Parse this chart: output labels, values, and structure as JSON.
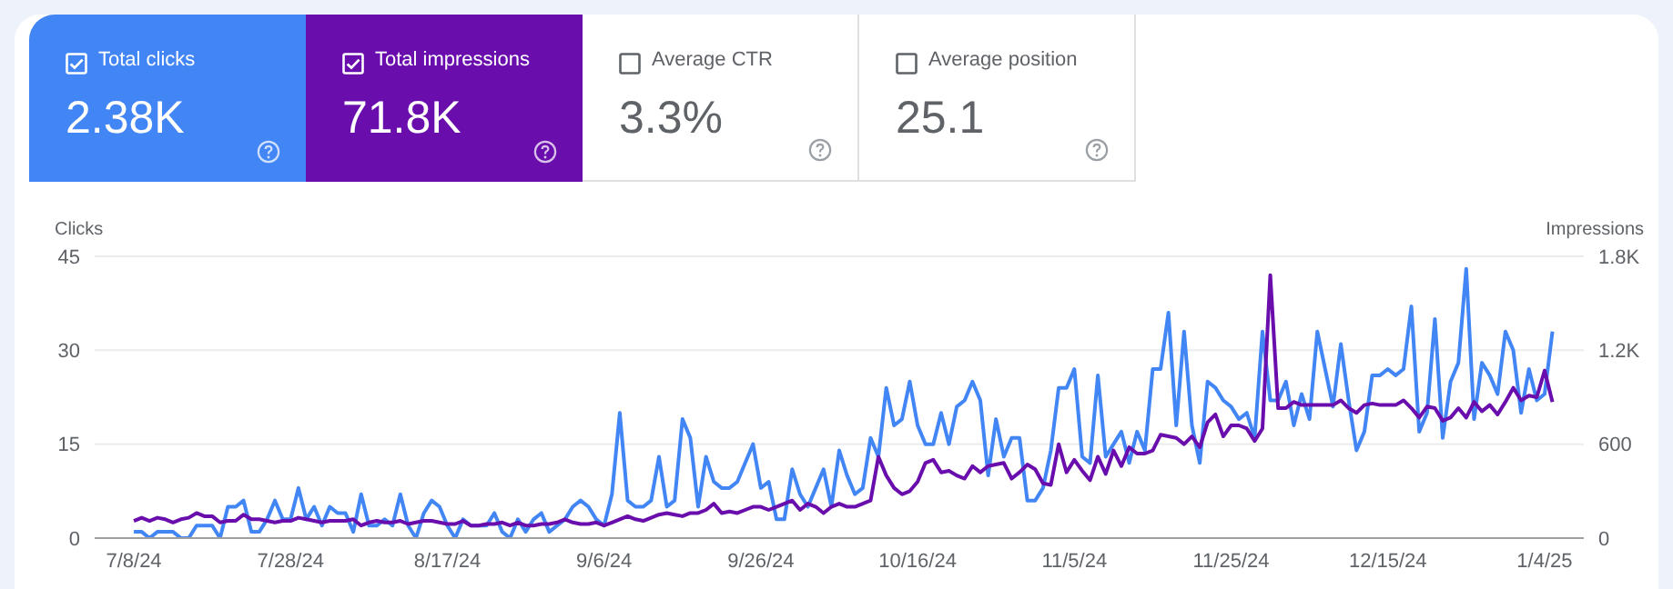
{
  "chart_data": {
    "type": "line",
    "annotations": [
      "Total clicks",
      "2.38K",
      "Total impressions",
      "71.8K",
      "Average CTR",
      "3.3%",
      "Average position",
      "25.1"
    ],
    "ylabel": "Clicks",
    "y2label": "Impressions",
    "x": [
      "2024-07-08",
      "2024-07-09",
      "2024-07-10",
      "2024-07-11",
      "2024-07-12",
      "2024-07-13",
      "2024-07-14",
      "2024-07-15",
      "2024-07-16",
      "2024-07-17",
      "2024-07-18",
      "2024-07-19",
      "2024-07-20",
      "2024-07-21",
      "2024-07-22",
      "2024-07-23",
      "2024-07-24",
      "2024-07-25",
      "2024-07-26",
      "2024-07-27",
      "2024-07-28",
      "2024-07-29",
      "2024-07-30",
      "2024-07-31",
      "2024-08-01",
      "2024-08-02",
      "2024-08-03",
      "2024-08-04",
      "2024-08-05",
      "2024-08-06",
      "2024-08-07",
      "2024-08-08",
      "2024-08-09",
      "2024-08-10",
      "2024-08-11",
      "2024-08-12",
      "2024-08-13",
      "2024-08-14",
      "2024-08-15",
      "2024-08-16",
      "2024-08-17",
      "2024-08-18",
      "2024-08-19",
      "2024-08-20",
      "2024-08-21",
      "2024-08-22",
      "2024-08-23",
      "2024-08-24",
      "2024-08-25",
      "2024-08-26",
      "2024-08-27",
      "2024-08-28",
      "2024-08-29",
      "2024-08-30",
      "2024-08-31",
      "2024-09-01",
      "2024-09-02",
      "2024-09-03",
      "2024-09-04",
      "2024-09-05",
      "2024-09-06",
      "2024-09-07",
      "2024-09-08",
      "2024-09-09",
      "2024-09-10",
      "2024-09-11",
      "2024-09-12",
      "2024-09-13",
      "2024-09-14",
      "2024-09-15",
      "2024-09-16",
      "2024-09-17",
      "2024-09-18",
      "2024-09-19",
      "2024-09-20",
      "2024-09-21",
      "2024-09-22",
      "2024-09-23",
      "2024-09-24",
      "2024-09-25",
      "2024-09-26",
      "2024-09-27",
      "2024-09-28",
      "2024-09-29",
      "2024-09-30",
      "2024-10-01",
      "2024-10-02",
      "2024-10-03",
      "2024-10-04",
      "2024-10-05",
      "2024-10-06",
      "2024-10-07",
      "2024-10-08",
      "2024-10-09",
      "2024-10-10",
      "2024-10-11",
      "2024-10-12",
      "2024-10-13",
      "2024-10-14",
      "2024-10-15",
      "2024-10-16",
      "2024-10-17",
      "2024-10-18",
      "2024-10-19",
      "2024-10-20",
      "2024-10-21",
      "2024-10-22",
      "2024-10-23",
      "2024-10-24",
      "2024-10-25",
      "2024-10-26",
      "2024-10-27",
      "2024-10-28",
      "2024-10-29",
      "2024-10-30",
      "2024-10-31",
      "2024-11-01",
      "2024-11-02",
      "2024-11-03",
      "2024-11-04",
      "2024-11-05",
      "2024-11-06",
      "2024-11-07",
      "2024-11-08",
      "2024-11-09",
      "2024-11-10",
      "2024-11-11",
      "2024-11-12",
      "2024-11-13",
      "2024-11-14",
      "2024-11-15",
      "2024-11-16",
      "2024-11-17",
      "2024-11-18",
      "2024-11-19",
      "2024-11-20",
      "2024-11-21",
      "2024-11-22",
      "2024-11-23",
      "2024-11-24",
      "2024-11-25",
      "2024-11-26",
      "2024-11-27",
      "2024-11-28",
      "2024-11-29",
      "2024-11-30",
      "2024-12-01",
      "2024-12-02",
      "2024-12-03",
      "2024-12-04",
      "2024-12-05",
      "2024-12-06",
      "2024-12-07",
      "2024-12-08",
      "2024-12-09",
      "2024-12-10",
      "2024-12-11",
      "2024-12-12",
      "2024-12-13",
      "2024-12-14",
      "2024-12-15",
      "2024-12-16",
      "2024-12-17",
      "2024-12-18",
      "2024-12-19",
      "2024-12-20",
      "2024-12-21",
      "2024-12-22",
      "2024-12-23",
      "2024-12-24",
      "2024-12-25",
      "2024-12-26",
      "2024-12-27",
      "2024-12-28",
      "2024-12-29",
      "2024-12-30",
      "2024-12-31",
      "2025-01-01",
      "2025-01-02",
      "2025-01-03",
      "2025-01-04",
      "2025-01-05"
    ],
    "series": [
      {
        "color": "#4285f4",
        "values": [
          1,
          1,
          0,
          1,
          1,
          1,
          0,
          0,
          2,
          2,
          2,
          0,
          5,
          5,
          6,
          1,
          1,
          3,
          6,
          3,
          3,
          8,
          3,
          5,
          2,
          5,
          4,
          4,
          1,
          7,
          2,
          2,
          3,
          2,
          7,
          2,
          0,
          4,
          6,
          5,
          2,
          0,
          3,
          2,
          2,
          2,
          4,
          1,
          0,
          3,
          1,
          3,
          4,
          1,
          2,
          3,
          5,
          6,
          5,
          3,
          2,
          7,
          20,
          6,
          5,
          5,
          6,
          13,
          5,
          6,
          19,
          16,
          5,
          13,
          9,
          8,
          8,
          9,
          12,
          15,
          8,
          9,
          3,
          3,
          11,
          7,
          5,
          8,
          11,
          5,
          14,
          10,
          7,
          8,
          16,
          13,
          24,
          18,
          19,
          25,
          18,
          15,
          15,
          20,
          15,
          21,
          22,
          25,
          22,
          10,
          19,
          13,
          16,
          16,
          6,
          6,
          8,
          14,
          24,
          24,
          27,
          13,
          12,
          26,
          13,
          15,
          17,
          12,
          17,
          14,
          27,
          27,
          36,
          18,
          33,
          18,
          12,
          25,
          24,
          22,
          21,
          19,
          20,
          16,
          33,
          22,
          22,
          25,
          18,
          23,
          19,
          33,
          27,
          21,
          31,
          22,
          14,
          17,
          26,
          26,
          27,
          26,
          27,
          37,
          17,
          20,
          35,
          16,
          25,
          28,
          43,
          19,
          28,
          26,
          23,
          33,
          30,
          20,
          27,
          22,
          23,
          33
        ]
      },
      {
        "color": "#6a0dad",
        "axis": "y2",
        "values": [
          110,
          130,
          110,
          130,
          120,
          100,
          120,
          130,
          160,
          140,
          140,
          100,
          110,
          110,
          150,
          120,
          120,
          110,
          100,
          110,
          110,
          130,
          120,
          110,
          100,
          110,
          110,
          110,
          120,
          80,
          100,
          110,
          100,
          100,
          110,
          90,
          100,
          110,
          110,
          100,
          90,
          90,
          110,
          80,
          80,
          90,
          90,
          100,
          80,
          100,
          80,
          80,
          90,
          90,
          100,
          120,
          100,
          90,
          90,
          100,
          80,
          100,
          120,
          140,
          120,
          110,
          130,
          150,
          160,
          150,
          140,
          160,
          160,
          180,
          220,
          160,
          170,
          160,
          180,
          200,
          200,
          180,
          200,
          220,
          240,
          180,
          220,
          200,
          160,
          200,
          220,
          200,
          200,
          220,
          240,
          520,
          400,
          320,
          280,
          300,
          360,
          480,
          500,
          420,
          430,
          400,
          380,
          460,
          420,
          460,
          470,
          480,
          380,
          420,
          470,
          440,
          350,
          340,
          600,
          420,
          500,
          430,
          370,
          520,
          410,
          560,
          460,
          580,
          540,
          540,
          560,
          660,
          650,
          640,
          600,
          650,
          580,
          740,
          790,
          650,
          720,
          720,
          700,
          620,
          700,
          1680,
          830,
          830,
          870,
          850,
          850,
          850,
          850,
          850,
          880,
          830,
          800,
          850,
          860,
          850,
          850,
          850,
          880,
          830,
          770,
          840,
          830,
          750,
          770,
          830,
          770,
          870,
          810,
          850,
          790,
          870,
          960,
          880,
          910,
          900,
          1070,
          870
        ]
      }
    ],
    "xlim": [
      "2024-07-03",
      "2025-01-09"
    ],
    "xticks": [
      {
        "value": "2024-07-08",
        "label": "7/8/24"
      },
      {
        "value": "2024-07-28",
        "label": "7/28/24"
      },
      {
        "value": "2024-08-17",
        "label": "8/17/24"
      },
      {
        "value": "2024-09-06",
        "label": "9/6/24"
      },
      {
        "value": "2024-09-26",
        "label": "9/26/24"
      },
      {
        "value": "2024-10-16",
        "label": "10/16/24"
      },
      {
        "value": "2024-11-05",
        "label": "11/5/24"
      },
      {
        "value": "2024-11-25",
        "label": "11/25/24"
      },
      {
        "value": "2024-12-15",
        "label": "12/15/24"
      },
      {
        "value": "2025-01-04",
        "label": "1/4/25"
      }
    ],
    "ylim": [
      0,
      45
    ],
    "yticks": [
      0,
      15,
      30,
      45
    ],
    "y2lim": [
      0,
      1800
    ],
    "y2ticks": [
      0,
      600,
      {
        "value": 1200,
        "label": "1.2K"
      },
      {
        "value": 1800,
        "label": "1.8K"
      }
    ],
    "grid": "y",
    "marker": "none",
    "line_style": "solid"
  }
}
